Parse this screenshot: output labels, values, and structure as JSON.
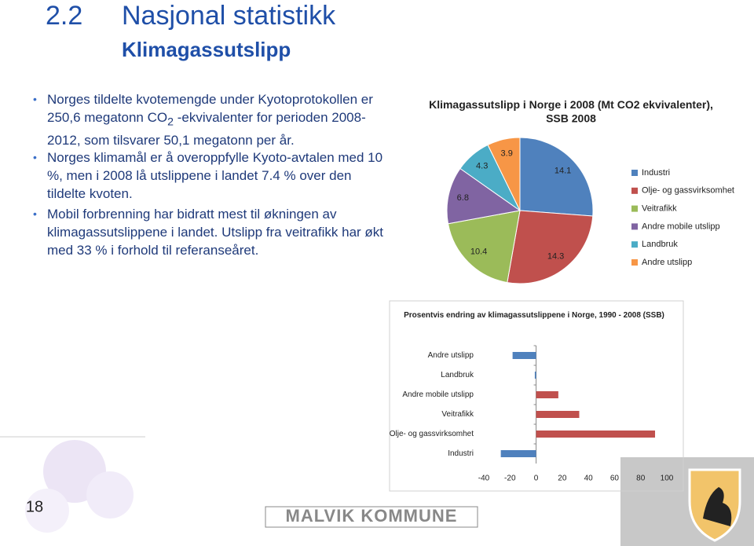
{
  "slide": {
    "section_number": "2.2",
    "title": "Nasjonal statistikk",
    "subtitle": "Klimagassutslipp",
    "bullets": [
      [
        "Norges tildelte kvotemengde under Kyotoprotokollen er 250,6 megatonn CO",
        "2",
        " -ekvivalenter for perioden 2008-2012, som tilsvarer 50,1 megatonn per år."
      ],
      [
        "Norges klimamål er å overoppfylle Kyoto-avtalen med 10 %, men i 2008 lå utslippene i landet 7.4 % over den tildelte kvoten."
      ],
      [
        "Mobil forbrenning har bidratt mest til økningen av klimagassutslippene i landet. Utslipp fra veitrafikk har økt med 33 % i forhold til referanseåret."
      ]
    ],
    "page_number": "18",
    "logo": "MALVIK KOMMUNE"
  },
  "chart_data": [
    {
      "type": "pie",
      "title": "Klimagassutslipp i Norge i 2008 (Mt CO2 ekvivalenter), SSB 2008",
      "categories": [
        "Industri",
        "Olje- og gassvirksomhet",
        "Veitrafikk",
        "Andre mobile utslipp",
        "Landbruk",
        "Andre utslipp"
      ],
      "values": [
        14.1,
        14.3,
        10.4,
        6.8,
        4.3,
        3.9
      ],
      "colors": [
        "#4f81bd",
        "#c0504d",
        "#9bbb59",
        "#8064a2",
        "#4bacc6",
        "#f79646"
      ],
      "legend": "right"
    },
    {
      "type": "hbar",
      "title": "Prosentvis endring av klimagassutslippene i Norge, 1990 - 2008 (SSB)",
      "categories": [
        "Andre utslipp",
        "Landbruk",
        "Andre mobile utslipp",
        "Veitrafikk",
        "Olje- og gassvirksomhet",
        "Industri"
      ],
      "values": [
        -18,
        -1,
        17,
        33,
        91,
        -27
      ],
      "color": "#c0504d",
      "negative_color": "#4f81bd",
      "xlim": [
        -40,
        100
      ],
      "xticks": [
        -40,
        -20,
        0,
        20,
        40,
        60,
        80,
        100
      ]
    }
  ]
}
